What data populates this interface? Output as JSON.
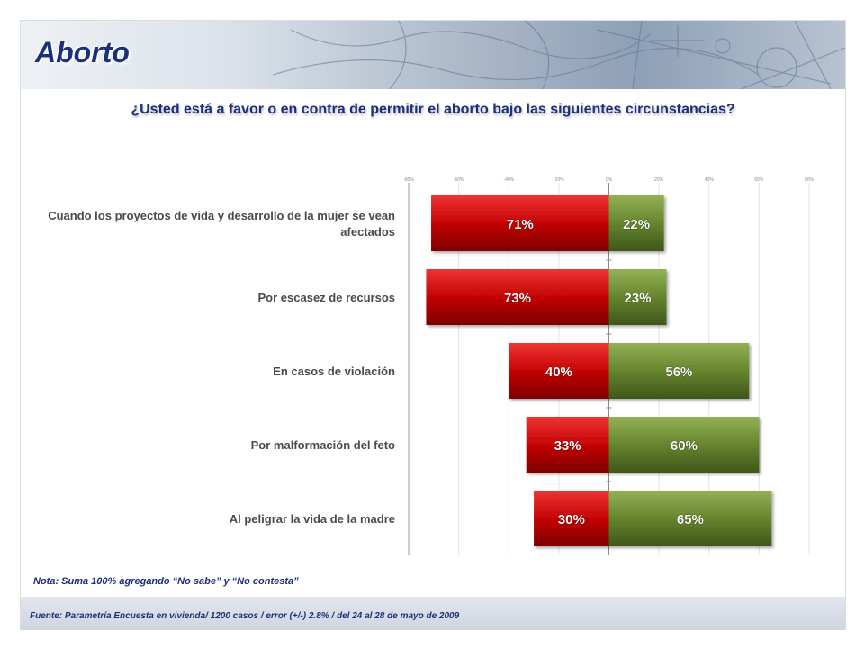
{
  "header": {
    "title": "Aborto",
    "question": "¿Usted está a favor o en contra de permitir el aborto bajo las siguientes circunstancias?"
  },
  "colors": {
    "contra": "#c00000",
    "favor": "#5f7f2a",
    "title": "#1c2f7a"
  },
  "chart_data": {
    "type": "bar",
    "orientation": "horizontal-diverging",
    "categories": [
      "Cuando los proyectos de vida y desarrollo de la mujer se vean afectados",
      "Por escasez de recursos",
      "En casos de violación",
      "Por malformación del feto",
      "Al peligrar la vida de la madre"
    ],
    "series": [
      {
        "values": [
          71,
          73,
          40,
          33,
          30
        ],
        "labels": [
          "71%",
          "73%",
          "40%",
          "33%",
          "30%"
        ]
      },
      {
        "values": [
          22,
          23,
          56,
          60,
          65
        ],
        "labels": [
          "22%",
          "23%",
          "56%",
          "60%",
          "65%"
        ]
      }
    ],
    "xlim": [
      -80,
      80
    ],
    "x_ticks": [
      "-80%",
      "-60%",
      "-40%",
      "-20%",
      "0%",
      "20%",
      "40%",
      "60%",
      "80%"
    ],
    "grid": true
  },
  "footer": {
    "note": "Nota: Suma 100% agregando “No sabe” y  “No contesta”",
    "source": "Fuente: Parametría Encuesta en vivienda/ 1200 casos / error (+/-) 2.8% / del 24 al 28 de mayo de 2009"
  }
}
